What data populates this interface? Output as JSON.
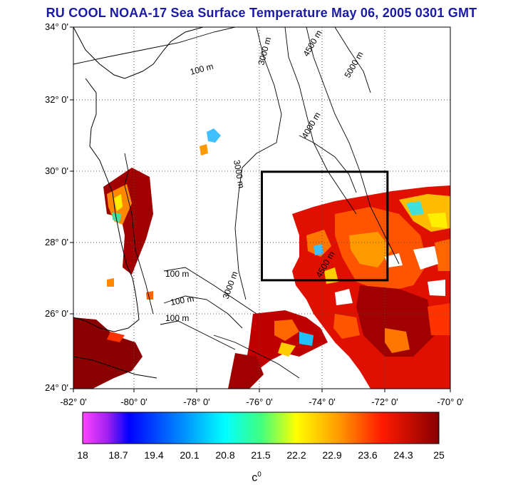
{
  "title": "RU COOL  NOAA-17 Sea Surface Temperature May 06, 2005 0301 GMT",
  "map": {
    "lat_labels": [
      "34° 0'",
      "32° 0'",
      "30° 0'",
      "28° 0'",
      "26° 0'",
      "24° 0'"
    ],
    "lon_labels": [
      "-82° 0'",
      "-80° 0'",
      "-78° 0'",
      "-76° 0'",
      "-74° 0'",
      "-72° 0'",
      "-70° 0'"
    ],
    "lat_range": [
      24,
      34
    ],
    "lon_range": [
      -82,
      -70
    ],
    "study_box": {
      "lon": [
        -76,
        -72
      ],
      "lat": [
        27,
        30
      ]
    },
    "contour_labels": [
      "100 m",
      "3000 m",
      "4500 m",
      "5000 m",
      "4000 m"
    ],
    "colors": {
      "land": "#ffffff",
      "coast": "#000000",
      "grid": "#555555",
      "title": "#1a1aa6"
    }
  },
  "colorbar": {
    "ticks": [
      "18",
      "18.7",
      "19.4",
      "20.1",
      "20.8",
      "21.5",
      "22.2",
      "22.9",
      "23.6",
      "24.3",
      "25"
    ],
    "unit": "c",
    "unit_sup": "0",
    "range": [
      18,
      25
    ]
  }
}
